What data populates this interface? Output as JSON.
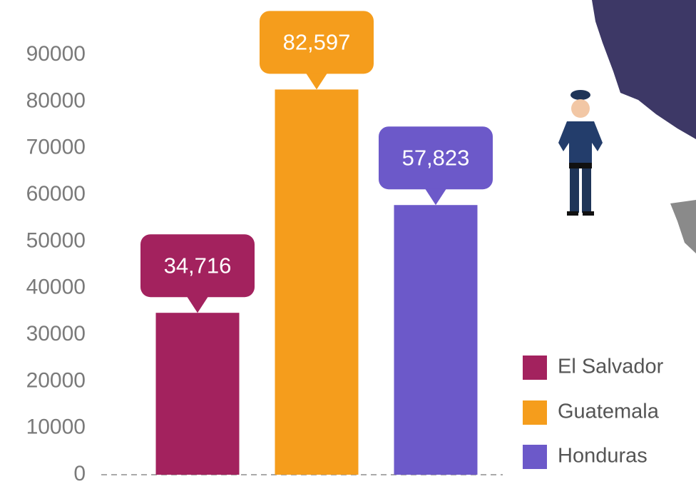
{
  "chart_data": {
    "type": "bar",
    "categories": [
      "El Salvador",
      "Guatemala",
      "Honduras"
    ],
    "values": [
      34716,
      82597,
      57823
    ],
    "value_labels": [
      "34,716",
      "82,597",
      "57,823"
    ],
    "colors": [
      "#a3225e",
      "#f59d1c",
      "#6c59c9"
    ],
    "ylim": [
      0,
      90000
    ],
    "yticks": [
      0,
      10000,
      20000,
      30000,
      40000,
      50000,
      60000,
      70000,
      80000,
      90000
    ],
    "legend": "lower right"
  }
}
